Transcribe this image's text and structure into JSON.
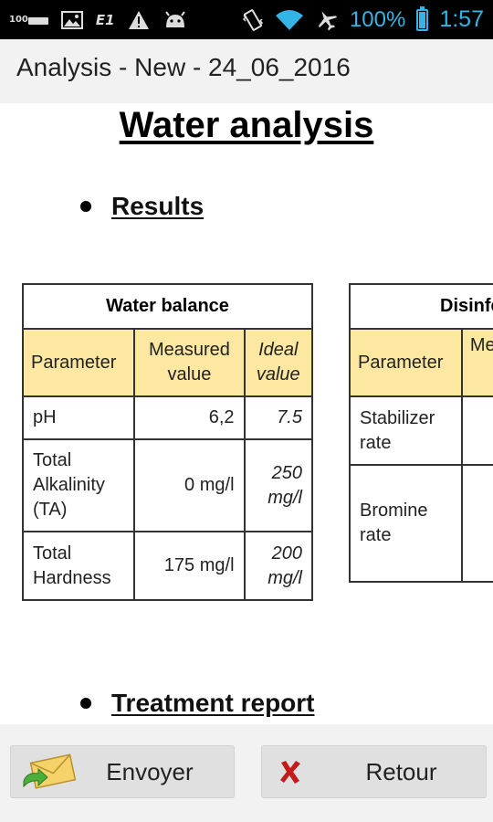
{
  "status_bar": {
    "left_icons": [
      "storage-100-icon",
      "image-icon",
      "e1-signal-icon",
      "warning-icon",
      "android-icon"
    ],
    "hundred_label": "100",
    "e1_label": "E1",
    "right_icons": [
      "vibrate-icon",
      "wifi-icon",
      "airplane-icon",
      "battery-icon"
    ],
    "battery_text": "100%",
    "time": "1:57",
    "accent_color": "#33b5e5"
  },
  "app_bar": {
    "title": "Analysis - New - 24_06_2016"
  },
  "document": {
    "title": "Water analysis",
    "sections": {
      "results": "Results",
      "treatment": "Treatment report"
    },
    "water_balance": {
      "caption": "Water balance",
      "headers": {
        "parameter": "Parameter",
        "measured": "Measured value",
        "ideal": "Ideal value"
      },
      "rows": [
        {
          "parameter": "pH",
          "measured": "6,2",
          "ideal": "7.5"
        },
        {
          "parameter": "Total Alkalinity (TA)",
          "measured": "0 mg/l",
          "ideal": "250 mg/l"
        },
        {
          "parameter": "Total Hardness",
          "measured": "175 mg/l",
          "ideal": "200 mg/l"
        }
      ]
    },
    "disinfection": {
      "caption_visible": "Disinfe",
      "headers": {
        "parameter": "Parameter",
        "measured_partial": "Me"
      },
      "rows": [
        {
          "parameter": "Stabilizer rate"
        },
        {
          "parameter": "Bromine rate"
        }
      ]
    },
    "header_fill_color": "#fde8a2"
  },
  "bottom_bar": {
    "send_label": "Envoyer",
    "back_label": "Retour"
  }
}
